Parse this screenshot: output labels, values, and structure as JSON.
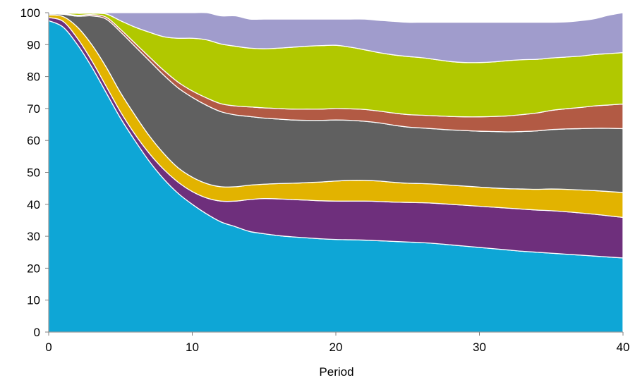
{
  "chart_data": {
    "type": "area",
    "stacked": true,
    "title": "",
    "xlabel": "Period",
    "ylabel": "",
    "xlim": [
      0,
      40
    ],
    "ylim": [
      0,
      100
    ],
    "xticks": [
      0,
      10,
      20,
      30,
      40
    ],
    "yticks": [
      0,
      10,
      20,
      30,
      40,
      50,
      60,
      70,
      80,
      90,
      100
    ],
    "grid": false,
    "legend": "none",
    "x": [
      0,
      1,
      2,
      3,
      4,
      5,
      6,
      7,
      8,
      9,
      10,
      11,
      12,
      13,
      14,
      15,
      16,
      17,
      18,
      19,
      20,
      21,
      22,
      23,
      24,
      25,
      26,
      27,
      28,
      29,
      30,
      31,
      32,
      33,
      34,
      35,
      36,
      37,
      38,
      39,
      40
    ],
    "series": [
      {
        "color": "#0ea6d6",
        "values": [
          97.5,
          95.5,
          90,
          83,
          75,
          67,
          60,
          53.5,
          48,
          43.5,
          40,
          37,
          34.5,
          33,
          31.5,
          30.8,
          30.2,
          29.8,
          29.5,
          29.2,
          29.0,
          28.9,
          28.8,
          28.6,
          28.4,
          28.2,
          28.0,
          27.7,
          27.3,
          26.9,
          26.5,
          26.1,
          25.7,
          25.3,
          25.0,
          24.7,
          24.4,
          24.1,
          23.8,
          23.5,
          23.2
        ]
      },
      {
        "color": "#6e2f7c",
        "values": [
          1,
          1.8,
          2,
          2,
          2,
          2,
          2,
          2.5,
          3,
          3.5,
          4,
          5,
          6.5,
          8,
          10,
          11,
          11.5,
          11.7,
          11.8,
          11.9,
          12.0,
          12.1,
          12.2,
          12.3,
          12.3,
          12.4,
          12.5,
          12.6,
          12.7,
          12.8,
          12.9,
          13.0,
          13.1,
          13.2,
          13.2,
          13.3,
          13.3,
          13.2,
          13.1,
          12.9,
          12.7
        ]
      },
      {
        "color": "#e2b300",
        "values": [
          0.8,
          1.5,
          3.5,
          5,
          6,
          6,
          6,
          5.5,
          5,
          4.5,
          4.5,
          4.5,
          4.5,
          4.5,
          4.5,
          4.5,
          4.8,
          5.1,
          5.5,
          5.9,
          6.3,
          6.5,
          6.5,
          6.4,
          6.2,
          6.0,
          6.0,
          6.0,
          6.0,
          6.0,
          6.0,
          6.0,
          6.1,
          6.3,
          6.5,
          6.8,
          7.0,
          7.2,
          7.4,
          7.6,
          7.8
        ]
      },
      {
        "color": "#606060",
        "values": [
          0.3,
          0.7,
          3.4,
          9,
          15,
          19,
          21.5,
          23.5,
          24.5,
          25,
          25,
          24.5,
          23.5,
          22.5,
          21.5,
          20.7,
          20.2,
          19.8,
          19.5,
          19.3,
          19.1,
          18.8,
          18.5,
          18.2,
          17.9,
          17.6,
          17.4,
          17.3,
          17.3,
          17.4,
          17.5,
          17.7,
          17.8,
          18.0,
          18.3,
          18.6,
          18.9,
          19.2,
          19.5,
          19.8,
          20.0
        ]
      },
      {
        "color": "#b25a44",
        "values": [
          0.1,
          0.2,
          0.3,
          0.4,
          0.6,
          0.8,
          1,
          1.2,
          1.5,
          1.8,
          2,
          2.3,
          2.5,
          2.8,
          3,
          3.2,
          3.3,
          3.4,
          3.5,
          3.5,
          3.6,
          3.6,
          3.7,
          3.7,
          3.8,
          3.9,
          4.0,
          4.1,
          4.2,
          4.3,
          4.5,
          4.7,
          5.0,
          5.3,
          5.6,
          6.0,
          6.3,
          6.6,
          7.0,
          7.3,
          7.7
        ]
      },
      {
        "color": "#b1c800",
        "values": [
          0.2,
          0.2,
          0.6,
          0.4,
          1,
          2.7,
          5,
          7.7,
          10.5,
          13.7,
          16.5,
          18.2,
          18.7,
          18.7,
          18.4,
          18.5,
          18.9,
          19.4,
          19.7,
          19.9,
          19.8,
          19.3,
          18.7,
          18.3,
          18.2,
          18.2,
          18.0,
          17.6,
          17.2,
          17.0,
          17.0,
          17.1,
          17.3,
          17.2,
          16.8,
          16.4,
          16.2,
          16.1,
          16.1,
          16.1,
          16.1
        ]
      },
      {
        "color": "#a09ccc",
        "values": [
          0.1,
          0.1,
          0.2,
          0.2,
          0.4,
          2.5,
          4.5,
          6.1,
          7.5,
          8.0,
          8.0,
          8.5,
          8.8,
          9.5,
          9.1,
          9.3,
          9.1,
          8.8,
          8.5,
          8.3,
          8.2,
          8.8,
          9.6,
          10.1,
          10.5,
          10.7,
          11.1,
          11.7,
          12.3,
          12.6,
          12.6,
          12.4,
          12.0,
          11.7,
          11.6,
          11.2,
          11.0,
          11.1,
          11.2,
          12.0,
          12.5
        ]
      }
    ]
  }
}
